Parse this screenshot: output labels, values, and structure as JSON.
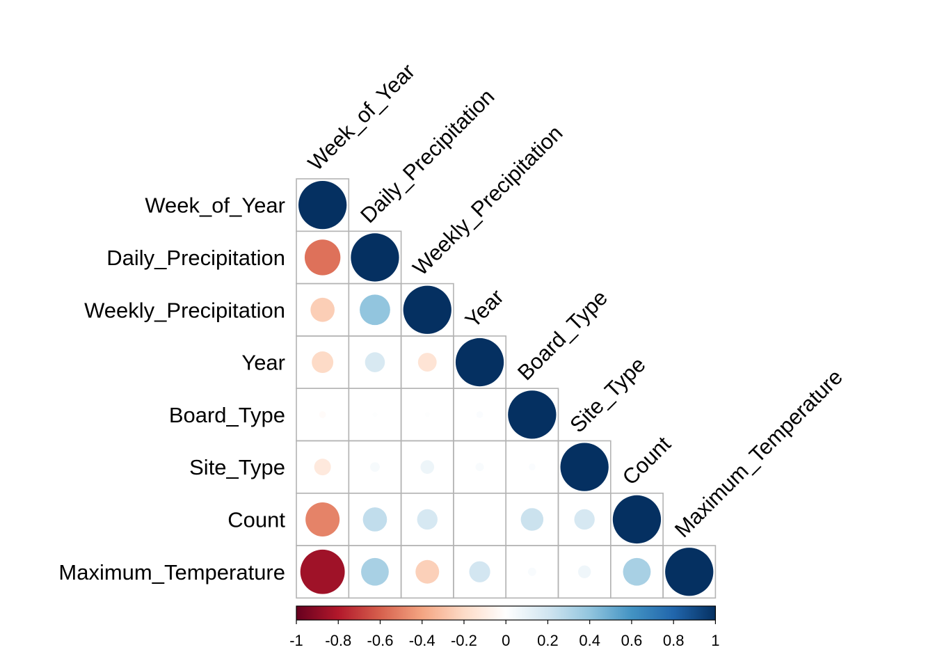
{
  "chart_data": {
    "type": "heatmap",
    "style": "correlation-circles-lower-triangle",
    "title": "",
    "variables": [
      "Week_of_Year",
      "Daily_Precipitation",
      "Weekly_Precipitation",
      "Year",
      "Board_Type",
      "Site_Type",
      "Count",
      "Maximum_Temperature"
    ],
    "matrix": [
      [
        1.0,
        -0.55,
        -0.25,
        -0.2,
        -0.02,
        -0.12,
        -0.5,
        -0.85
      ],
      [
        -0.55,
        1.0,
        0.4,
        0.17,
        0.01,
        0.04,
        0.25,
        0.33
      ],
      [
        -0.25,
        0.4,
        1.0,
        -0.15,
        0.01,
        0.08,
        0.18,
        -0.24
      ],
      [
        -0.2,
        0.17,
        -0.15,
        1.0,
        0.02,
        0.03,
        0.0,
        0.19
      ],
      [
        -0.02,
        0.01,
        0.01,
        0.02,
        1.0,
        0.02,
        0.22,
        0.03
      ],
      [
        -0.12,
        0.04,
        0.08,
        0.03,
        0.02,
        1.0,
        0.18,
        0.07
      ],
      [
        -0.5,
        0.25,
        0.18,
        0.0,
        0.22,
        0.18,
        1.0,
        0.33
      ],
      [
        -0.85,
        0.33,
        -0.24,
        0.19,
        0.03,
        0.07,
        0.33,
        1.0
      ]
    ],
    "colorbar": {
      "range": [
        -1,
        1
      ],
      "tick_labels": [
        "-1",
        "-0.8",
        "-0.6",
        "-0.4",
        "-0.2",
        "0",
        "0.2",
        "0.4",
        "0.6",
        "0.8",
        "1"
      ],
      "stops": [
        "#67001F",
        "#B2182B",
        "#D6604D",
        "#F4A582",
        "#FDDBC7",
        "#FFFFFF",
        "#D1E5F0",
        "#92C5DE",
        "#4393C3",
        "#2166AC",
        "#053061"
      ],
      "placement": "bottom"
    },
    "grid_color": "#B3B3B3"
  }
}
